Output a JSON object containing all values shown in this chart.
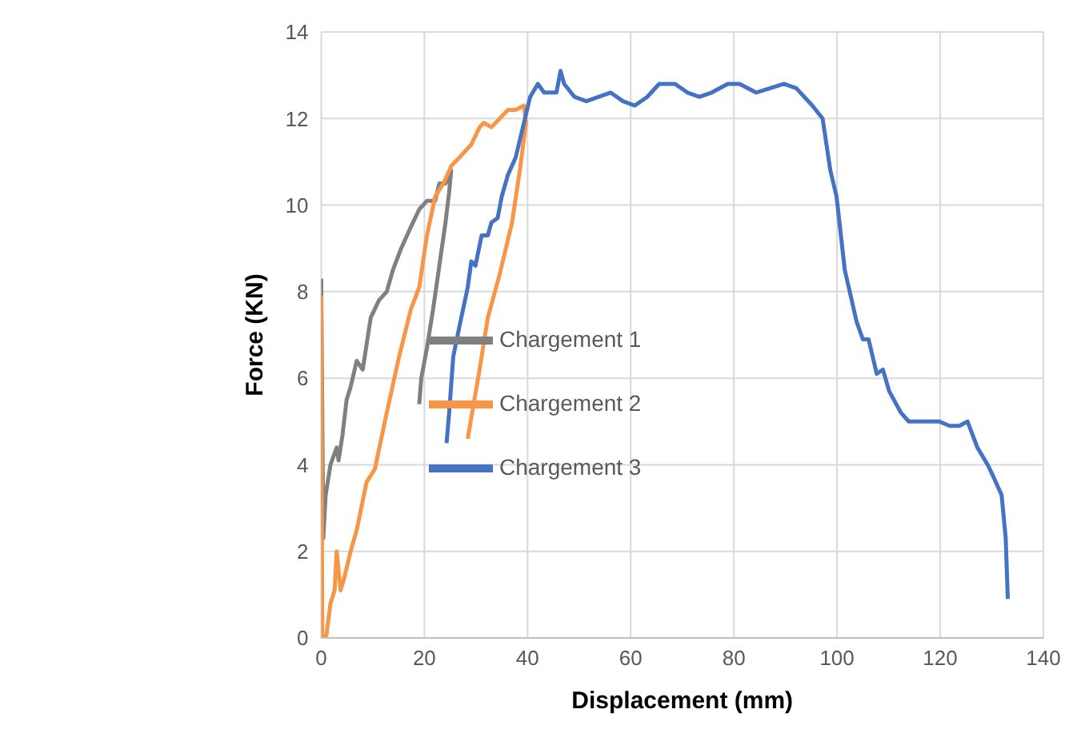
{
  "chart_data": {
    "type": "line",
    "xlabel": "Displacement (mm)",
    "ylabel": "Force (KN)",
    "xlim": [
      0,
      140
    ],
    "xticks": [
      0,
      20,
      40,
      60,
      80,
      100,
      120,
      140
    ],
    "ylim": [
      0,
      14
    ],
    "yticks": [
      0,
      2,
      4,
      6,
      8,
      10,
      12,
      14
    ],
    "grid": true,
    "legend": "center",
    "marker": "none",
    "line_style": "solid",
    "series": [
      {
        "name": "Chargement 1",
        "color": "#808080",
        "x": [
          0,
          0.4,
          0.86,
          1.8,
          3.0,
          3.36,
          4.14,
          4.92,
          5.7,
          6.88,
          8.05,
          9.6,
          11.2,
          12.7,
          13.9,
          15.5,
          17.4,
          19.0,
          20.5,
          22.1,
          22.9,
          24.1,
          25.2,
          24.8,
          24.1,
          22.9,
          21.7,
          20.5,
          19.4,
          19.0
        ],
        "values": [
          8.3,
          2.3,
          3.3,
          4.0,
          4.4,
          4.1,
          4.7,
          5.5,
          5.8,
          6.4,
          6.2,
          7.4,
          7.8,
          8.0,
          8.5,
          9.0,
          9.5,
          9.9,
          10.1,
          10.1,
          10.5,
          10.5,
          10.8,
          10.3,
          9.6,
          8.6,
          7.6,
          6.7,
          6.0,
          5.4
        ]
      },
      {
        "name": "Chargement 2",
        "color": "#f79646",
        "x": [
          0,
          0.2,
          1.0,
          1.8,
          2.6,
          3.0,
          3.75,
          4.5,
          5.7,
          6.9,
          8.8,
          10.4,
          12.7,
          15.1,
          17.4,
          19.0,
          20.5,
          22.1,
          23.7,
          25.2,
          26.8,
          29.1,
          30.7,
          31.5,
          33.0,
          34.6,
          36.2,
          37.7,
          39.3,
          39.7,
          38.5,
          37.0,
          34.6,
          32.3,
          30.7,
          28.4
        ],
        "values": [
          7.9,
          0.05,
          0.05,
          0.8,
          1.1,
          2.0,
          1.1,
          1.4,
          2.0,
          2.5,
          3.6,
          3.9,
          5.2,
          6.5,
          7.6,
          8.1,
          9.3,
          10.2,
          10.5,
          10.9,
          11.1,
          11.4,
          11.8,
          11.9,
          11.8,
          12.0,
          12.2,
          12.2,
          12.3,
          11.9,
          10.8,
          9.6,
          8.4,
          7.4,
          6.2,
          4.6
        ]
      },
      {
        "name": "Chargement 3",
        "color": "#4472c4",
        "x": [
          24.3,
          24.8,
          25.6,
          26.8,
          28.4,
          29.1,
          29.9,
          31.1,
          32.3,
          33.0,
          34.2,
          35.0,
          36.2,
          37.7,
          39.3,
          40.5,
          42.0,
          43.2,
          44.4,
          45.6,
          46.4,
          47.1,
          49.1,
          51.4,
          53.8,
          56.1,
          58.5,
          60.8,
          63.2,
          65.5,
          68.6,
          71.0,
          73.3,
          75.7,
          78.8,
          81.1,
          84.3,
          89.7,
          92.1,
          95.2,
          97.2,
          98.7,
          99.9,
          101.5,
          103.8,
          105.0,
          106.1,
          107.7,
          108.9,
          110.1,
          112.4,
          113.9,
          116.3,
          118.3,
          119.8,
          121.8,
          123.7,
          125.3,
          127.2,
          129.2,
          130.4,
          131.9,
          132.7,
          133.1
        ],
        "values": [
          4.5,
          5.2,
          6.5,
          7.2,
          8.1,
          8.7,
          8.6,
          9.3,
          9.3,
          9.6,
          9.7,
          10.2,
          10.7,
          11.1,
          11.9,
          12.5,
          12.8,
          12.6,
          12.6,
          12.6,
          13.1,
          12.8,
          12.5,
          12.4,
          12.5,
          12.6,
          12.4,
          12.3,
          12.5,
          12.8,
          12.8,
          12.6,
          12.5,
          12.6,
          12.8,
          12.8,
          12.6,
          12.8,
          12.7,
          12.3,
          12.0,
          10.8,
          10.2,
          8.5,
          7.3,
          6.9,
          6.9,
          6.1,
          6.2,
          5.7,
          5.2,
          5.0,
          5.0,
          5.0,
          5.0,
          4.9,
          4.9,
          5.0,
          4.4,
          4.0,
          3.7,
          3.3,
          2.3,
          0.9
        ]
      }
    ]
  }
}
